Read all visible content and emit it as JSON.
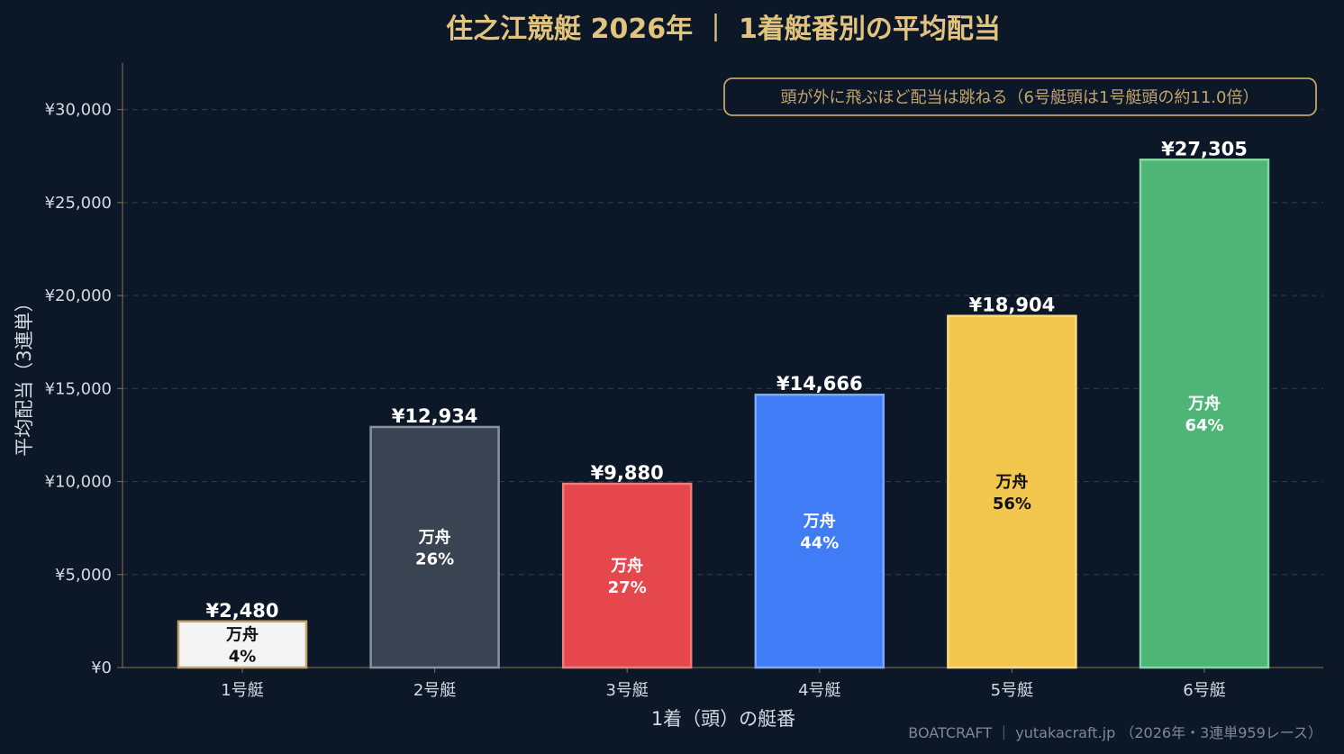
{
  "title": "住之江競艇 2026年 ｜ 1着艇番別の平均配当",
  "annotation": "頭が外に飛ぶほど配当は跳ねる（6号艇頭は1号艇頭の約11.0倍）",
  "credit": "BOATCRAFT ｜ yutakacraft.jp （2026年・3連単959レース）",
  "colors": {
    "background": "#0c1727",
    "title": "#e3c47f",
    "accent_gold": "#c4a46a",
    "grid": "#2e3b3a",
    "text": "#d5dae2"
  },
  "chart_data": {
    "type": "bar",
    "title": "住之江競艇 2026年 ｜ 1着艇番別の平均配当",
    "xlabel": "1着（頭）の艇番",
    "ylabel": "平均配当（3連単）",
    "categories": [
      "1号艇",
      "2号艇",
      "3号艇",
      "4号艇",
      "5号艇",
      "6号艇"
    ],
    "values": [
      2480,
      12934,
      9880,
      14666,
      18904,
      27305
    ],
    "value_labels": [
      "¥2,480",
      "¥12,934",
      "¥9,880",
      "¥14,666",
      "¥18,904",
      "¥27,305"
    ],
    "inner_title": "万舟",
    "inner_pct": [
      "4%",
      "26%",
      "27%",
      "44%",
      "56%",
      "64%"
    ],
    "bar_colors": [
      "#f4f4f4",
      "#3a4352",
      "#e5474c",
      "#3f7cf6",
      "#f3c64e",
      "#4fb577"
    ],
    "bar_edges": [
      "#c4a46a",
      "#8792a2",
      "#f07c80",
      "#7ea7fb",
      "#f9db84",
      "#86d6a6"
    ],
    "inner_text_colors": [
      "#111111",
      "#ffffff",
      "#ffffff",
      "#ffffff",
      "#111111",
      "#ffffff"
    ],
    "yticks": [
      0,
      5000,
      10000,
      15000,
      20000,
      25000,
      30000
    ],
    "ytick_labels": [
      "¥0",
      "¥5,000",
      "¥10,000",
      "¥15,000",
      "¥20,000",
      "¥25,000",
      "¥30,000"
    ],
    "ylim": [
      0,
      32500
    ],
    "grid": "horizontal dashed"
  }
}
